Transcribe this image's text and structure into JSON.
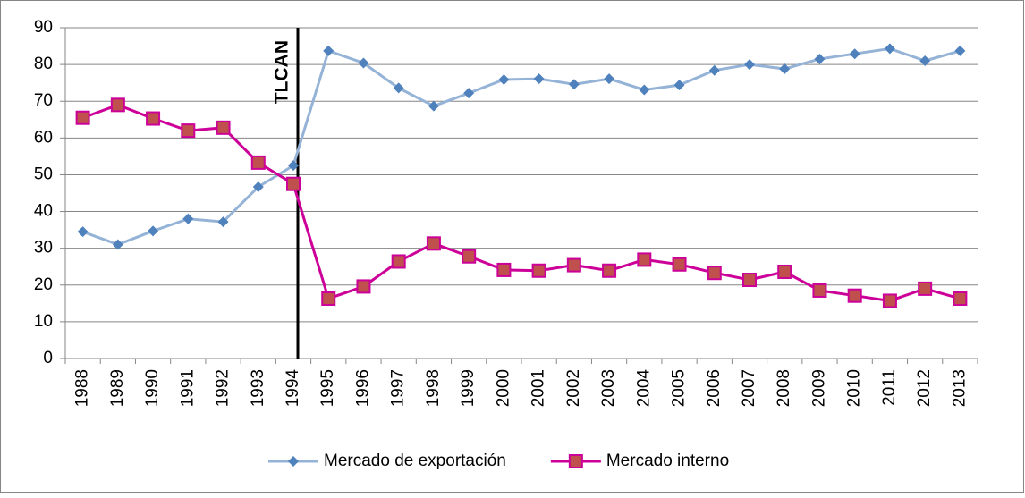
{
  "chart_data": {
    "type": "line",
    "categories": [
      "1988",
      "1989",
      "1990",
      "1991",
      "1992",
      "1993",
      "1994",
      "1995",
      "1996",
      "1997",
      "1998",
      "1999",
      "2000",
      "2001",
      "2002",
      "2003",
      "2004",
      "2005",
      "2006",
      "2007",
      "2008",
      "2009",
      "2010",
      "2011",
      "2012",
      "2013"
    ],
    "series": [
      {
        "name": "Mercado de exportación",
        "color": "#95b3d7",
        "marker_color": "#4f81bd",
        "marker": "diamond",
        "values": [
          34.5,
          31.0,
          34.7,
          38.0,
          37.2,
          46.7,
          52.5,
          83.7,
          80.4,
          73.6,
          68.7,
          72.2,
          75.9,
          76.1,
          74.6,
          76.1,
          73.1,
          74.4,
          78.4,
          80.0,
          78.8,
          81.5,
          82.9,
          84.3,
          81.0,
          83.7
        ]
      },
      {
        "name": "Mercado interno",
        "color": "#cc0099",
        "marker_color": "#c0504d",
        "marker": "square",
        "values": [
          65.5,
          69.0,
          65.3,
          62.0,
          62.8,
          53.3,
          47.5,
          16.3,
          19.6,
          26.4,
          31.3,
          27.8,
          24.1,
          23.9,
          25.4,
          23.9,
          26.9,
          25.6,
          23.3,
          21.4,
          23.6,
          18.5,
          17.1,
          15.7,
          19.0,
          16.3
        ]
      }
    ],
    "annotation": {
      "text": "TLCAN",
      "category": "1994"
    },
    "ylim": [
      0,
      90
    ],
    "yticks": [
      0,
      10,
      20,
      30,
      40,
      50,
      60,
      70,
      80,
      90
    ],
    "grid": true,
    "legend": "bottom"
  }
}
